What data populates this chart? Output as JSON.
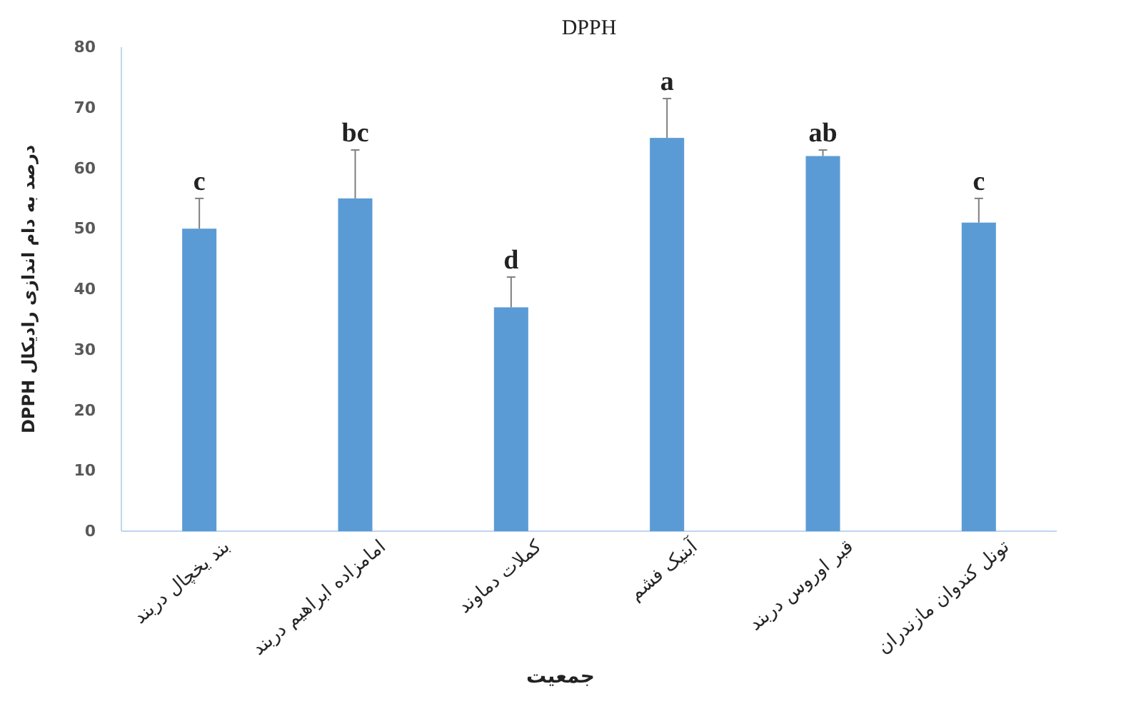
{
  "chart_data": {
    "type": "bar",
    "title": "DPPH",
    "xlabel": "جمعیت",
    "ylabel": "درصد به دام اندازی رادیکال DPPH",
    "categories": [
      "بند یخچال دربند",
      "امامزاده ابراهیم دربند",
      "کملات دماوند",
      "آبنیک فشم",
      "قبر اوروس دربند",
      "تونل کندوان مازندران"
    ],
    "values": [
      50,
      55,
      37,
      65,
      62,
      51
    ],
    "color": "#5b9bd5",
    "errors": [
      [
        50,
        55
      ],
      [
        55,
        63
      ],
      [
        37,
        42
      ],
      [
        65,
        71.5
      ],
      [
        62,
        63
      ],
      [
        51,
        55
      ]
    ],
    "annotations": [
      {
        "text": "c",
        "x": "بند یخچال دربند",
        "y": 50
      },
      {
        "text": "bc",
        "x": "امامزاده ابراهیم دربند",
        "y": 55
      },
      {
        "text": "d",
        "x": "کملات دماوند",
        "y": 37
      },
      {
        "text": "a",
        "x": "آبنیک فشم",
        "y": 65
      },
      {
        "text": "ab",
        "x": "قبر اوروس دربند",
        "y": 62
      },
      {
        "text": "c",
        "x": "تونل کندوان مازندران",
        "y": 51
      }
    ],
    "ylim": [
      0,
      80
    ],
    "yticks": [
      0,
      10,
      20,
      30,
      40,
      50,
      60,
      70,
      80
    ],
    "grid": false
  }
}
